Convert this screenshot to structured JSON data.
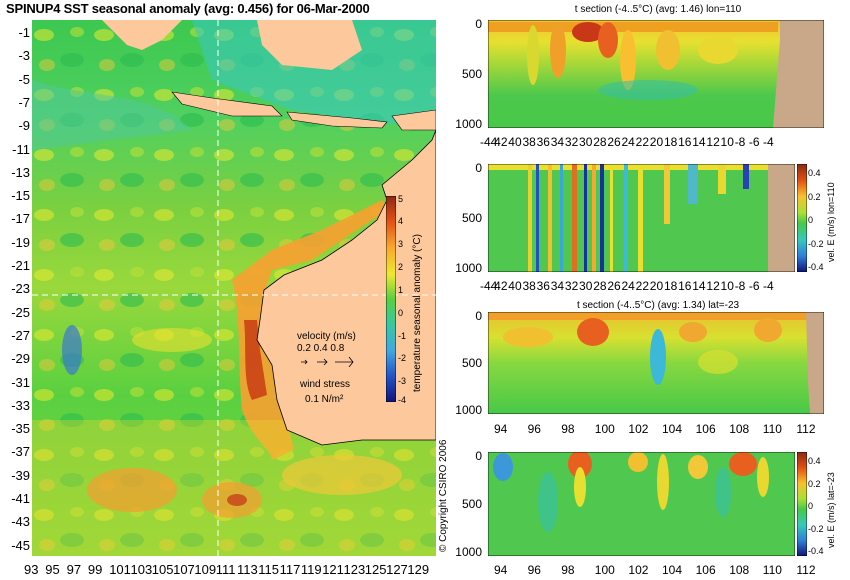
{
  "map": {
    "title": "SPINUP4 SST seasonal anomaly (avg: 0.456) for 06-Mar-2000",
    "lat_ticks": [
      "-1",
      "-3",
      "-5",
      "-7",
      "-9",
      "-11",
      "-13",
      "-15",
      "-17",
      "-19",
      "-21",
      "-23",
      "-25",
      "-27",
      "-29",
      "-31",
      "-33",
      "-35",
      "-37",
      "-39",
      "-41",
      "-43",
      "-45"
    ],
    "lon_ticks": [
      "93",
      "95",
      "97",
      "99",
      "101",
      "103",
      "105",
      "107",
      "109",
      "111",
      "113",
      "115",
      "117",
      "119",
      "121",
      "123",
      "125",
      "127",
      "129"
    ],
    "colorbar_ticks": [
      "5",
      "4",
      "3",
      "2",
      "1",
      "0",
      "-1",
      "-2",
      "-3",
      "-4"
    ],
    "colorbar_label": "temperature seasonal anomaly (°C)",
    "section_lon": 110,
    "section_lat": -23,
    "velocity_legend": {
      "title": "velocity (m/s)",
      "values": "0.2 0.4 0.8"
    },
    "wind_legend": {
      "title": "wind stress",
      "value": "0.1 N/m²"
    },
    "copyright": "© Copyright CSIRO 2006"
  },
  "panels": {
    "p1": {
      "title": "t section (-4..5°C) (avg: 1.46) lon=110",
      "yticks": [
        "0",
        "500",
        "1000"
      ],
      "xticks": [
        "-44",
        "42",
        "40",
        "38",
        "36",
        "34",
        "32",
        "30",
        "28",
        "26",
        "24",
        "22",
        "20",
        "18",
        "16",
        "14",
        "12",
        "10",
        "-8",
        "-6",
        "-4"
      ]
    },
    "p2": {
      "cb_label": "vel. E (m/s) lon=110",
      "cb_ticks": [
        "0.4",
        "0.2",
        "0",
        "-0.2",
        "-0.4"
      ],
      "yticks": [
        "0",
        "500",
        "1000"
      ],
      "xticks": [
        "-44",
        "42",
        "40",
        "38",
        "36",
        "34",
        "32",
        "30",
        "28",
        "26",
        "24",
        "22",
        "20",
        "18",
        "16",
        "14",
        "12",
        "10",
        "-8",
        "-6",
        "-4"
      ]
    },
    "p3": {
      "title": "t section (-4..5°C) (avg: 1.34) lat=-23",
      "yticks": [
        "0",
        "500",
        "1000"
      ],
      "xticks": [
        "94",
        "96",
        "98",
        "100",
        "102",
        "104",
        "106",
        "108",
        "110",
        "112"
      ]
    },
    "p4": {
      "cb_label": "vel. E (m/s) lat=-23",
      "cb_ticks": [
        "0.4",
        "0.2",
        "0",
        "-0.2",
        "-0.4"
      ],
      "yticks": [
        "0",
        "500",
        "1000"
      ],
      "xticks": [
        "94",
        "96",
        "98",
        "100",
        "102",
        "104",
        "106",
        "108",
        "110",
        "112"
      ]
    }
  },
  "colors": {
    "land": "#fcc89c",
    "ocean_base": "#3cc83c",
    "dashed_line": "#ffffff"
  }
}
